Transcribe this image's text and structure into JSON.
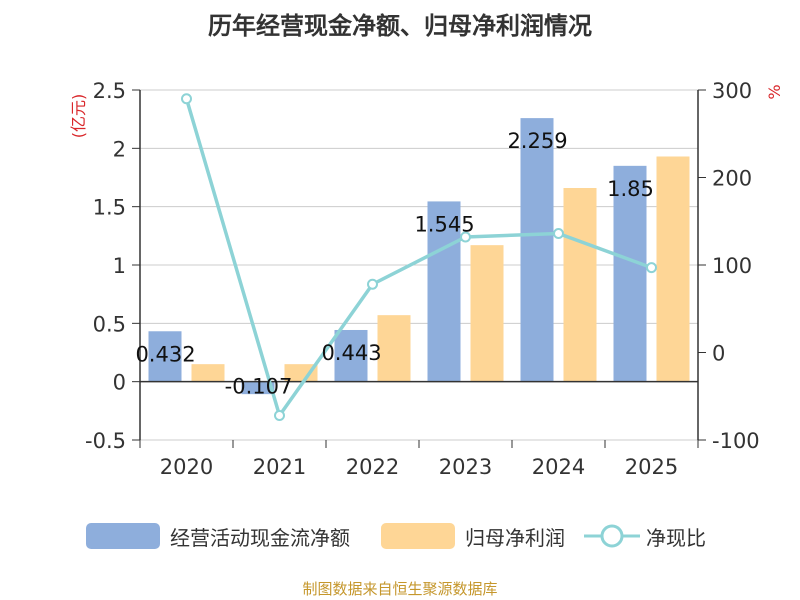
{
  "chart_data": {
    "type": "bar+line",
    "title": "历年经营现金净额、归母净利润情况",
    "categories": [
      "2020",
      "2021",
      "2022",
      "2023",
      "2024",
      "2025"
    ],
    "series": [
      {
        "name": "经营活动现金流净额",
        "type": "bar",
        "axis": "left",
        "color": "#8eaedc",
        "values": [
          0.432,
          -0.107,
          0.443,
          1.545,
          2.259,
          1.85
        ],
        "labels": [
          "0.432",
          "-0.107",
          "0.443",
          "1.545",
          "2.259",
          "1.85"
        ]
      },
      {
        "name": "归母净利润",
        "type": "bar",
        "axis": "left",
        "color": "#fed696",
        "values": [
          0.15,
          0.15,
          0.57,
          1.17,
          1.66,
          1.93
        ]
      },
      {
        "name": "净现比",
        "type": "line",
        "axis": "right",
        "color": "#8dd3d6",
        "values": [
          290,
          -72,
          78,
          132,
          136,
          97
        ]
      }
    ],
    "y_left": {
      "label": "(亿元)",
      "min": -0.5,
      "max": 2.5,
      "ticks": [
        -0.5,
        0,
        0.5,
        1,
        1.5,
        2,
        2.5
      ],
      "tick_labels": [
        "-0.5",
        "0",
        "0.5",
        "1",
        "1.5",
        "2",
        "2.5"
      ]
    },
    "y_right": {
      "label": "%",
      "min": -100,
      "max": 300,
      "ticks": [
        -100,
        0,
        100,
        200,
        300
      ],
      "tick_labels": [
        "-100",
        "0",
        "100",
        "200",
        "300"
      ]
    },
    "grid": true,
    "legend_position": "bottom"
  },
  "legend": {
    "bar1": "经营活动现金流净额",
    "bar2": "归母净利润",
    "line": "净现比"
  },
  "source": "制图数据来自恒生聚源数据库"
}
